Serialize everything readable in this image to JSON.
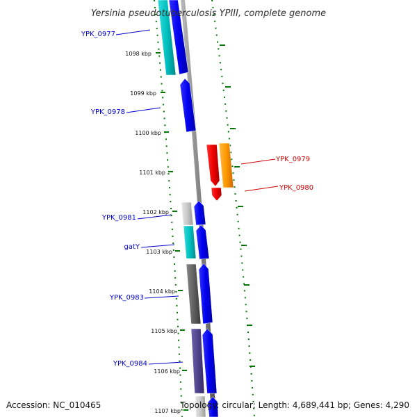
{
  "title": "Yersinia pseudotuberculosis YPIII, complete genome",
  "footer": {
    "accession": "Accession: NC_010465",
    "topology": "Topology: circular; Length: 4,689,441 bp; Genes: 4,290"
  },
  "ticks": [
    "1098 kbp",
    "1099 kbp",
    "1100 kbp",
    "1101 kbp",
    "1102 kbp",
    "1103 kbp",
    "1104 kbp",
    "1105 kbp",
    "1106 kbp",
    "1107 kbp"
  ],
  "genes": [
    {
      "name": "YPK_0977",
      "strand": "minus",
      "color": "#0000cc"
    },
    {
      "name": "YPK_0978",
      "strand": "minus",
      "color": "#0000cc"
    },
    {
      "name": "YPK_0979",
      "strand": "plus",
      "color": "#cc0000"
    },
    {
      "name": "YPK_0980",
      "strand": "plus",
      "color": "#cc0000"
    },
    {
      "name": "YPK_0981",
      "strand": "minus",
      "color": "#0000cc"
    },
    {
      "name": "gatY",
      "strand": "minus",
      "color": "#0000cc"
    },
    {
      "name": "YPK_0983",
      "strand": "minus",
      "color": "#0000cc"
    },
    {
      "name": "YPK_0984",
      "strand": "minus",
      "color": "#0000cc"
    }
  ],
  "colors": {
    "minus_strand": "#0000ee",
    "plus_strand": "#ee0000",
    "backbone": "#888888",
    "tick": "#007700",
    "category_cyan": "#00c0c0",
    "category_orange": "#ff9900",
    "category_light_gray": "#c8c8c8",
    "category_dark_gray": "#606060",
    "category_purple": "#50448c"
  }
}
